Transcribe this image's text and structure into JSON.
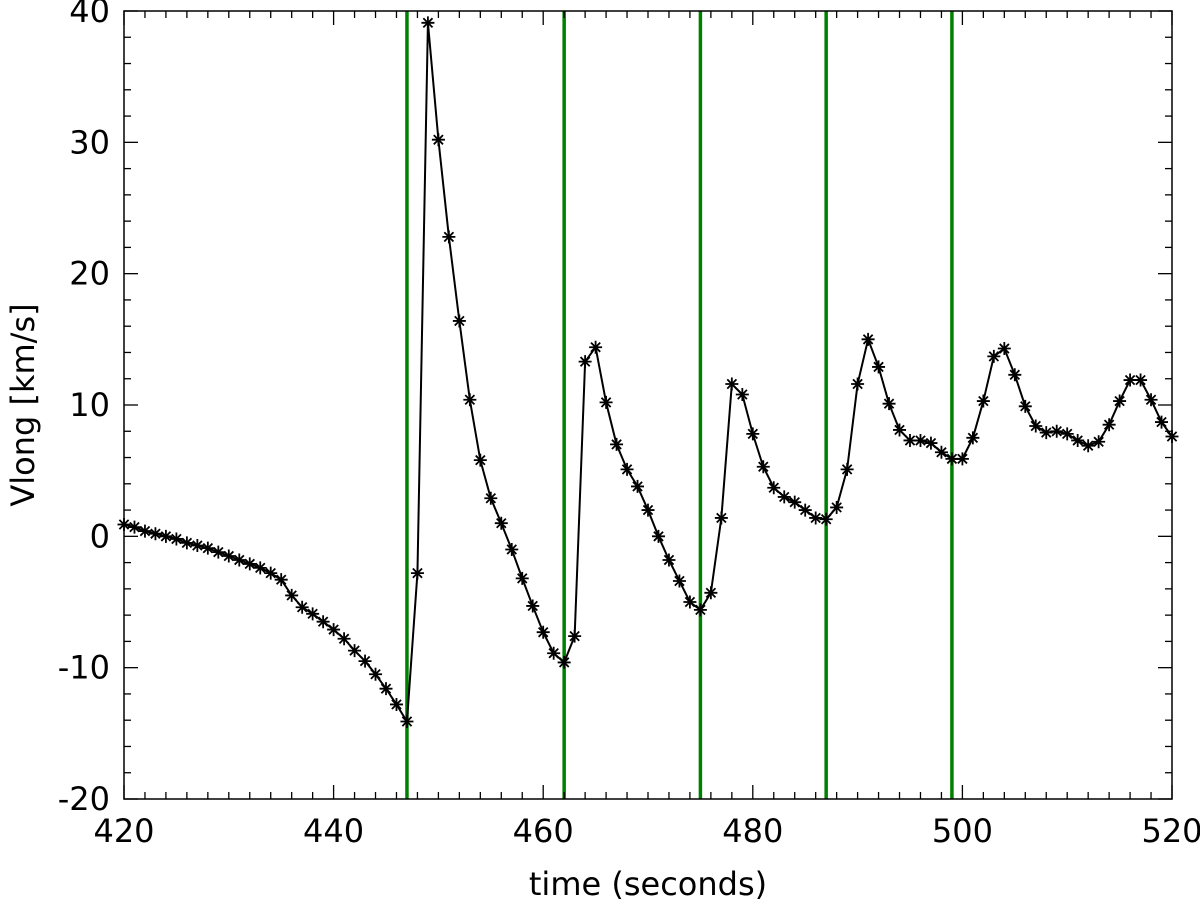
{
  "chart_data": {
    "type": "line",
    "title": "",
    "xlabel": "time (seconds)",
    "ylabel": "Vlong [km/s]",
    "xlim": [
      420,
      520
    ],
    "ylim": [
      -20,
      40
    ],
    "xticks": [
      "420",
      "440",
      "460",
      "480",
      "500",
      "520"
    ],
    "yticks": [
      "-20",
      "-10",
      "0",
      "10",
      "20",
      "30",
      "40"
    ],
    "grid": false,
    "legend": "none",
    "series": [
      {
        "color": "#000000",
        "marker": "asterisk",
        "x": [
          420,
          421,
          422,
          423,
          424,
          425,
          426,
          427,
          428,
          429,
          430,
          431,
          432,
          433,
          434,
          435,
          436,
          437,
          438,
          439,
          440,
          441,
          442,
          443,
          444,
          445,
          446,
          447,
          448,
          449,
          450,
          451,
          452,
          453,
          454,
          455,
          456,
          457,
          458,
          459,
          460,
          461,
          462,
          463,
          464,
          465,
          466,
          467,
          468,
          469,
          470,
          471,
          472,
          473,
          474,
          475,
          476,
          477,
          478,
          479,
          480,
          481,
          482,
          483,
          484,
          485,
          486,
          487,
          488,
          489,
          490,
          491,
          492,
          493,
          494,
          495,
          496,
          497,
          498,
          499,
          500,
          501,
          502,
          503,
          504,
          505,
          506,
          507,
          508,
          509,
          510,
          511,
          512,
          513,
          514,
          515,
          516,
          517,
          518,
          519,
          520
        ],
        "y": [
          0.9,
          0.7,
          0.4,
          0.2,
          0.0,
          -0.2,
          -0.5,
          -0.7,
          -0.9,
          -1.2,
          -1.5,
          -1.8,
          -2.1,
          -2.4,
          -2.8,
          -3.3,
          -4.5,
          -5.4,
          -5.9,
          -6.5,
          -7.1,
          -7.8,
          -8.7,
          -9.5,
          -10.5,
          -11.6,
          -12.8,
          -14.1,
          -2.8,
          39.1,
          30.2,
          22.8,
          16.4,
          10.4,
          5.8,
          2.9,
          1.0,
          -1.0,
          -3.2,
          -5.3,
          -7.3,
          -8.9,
          -9.6,
          -7.6,
          13.3,
          14.4,
          10.2,
          7.0,
          5.1,
          3.8,
          2.0,
          0.0,
          -1.8,
          -3.4,
          -5.0,
          -5.6,
          -4.3,
          1.4,
          11.6,
          10.8,
          7.8,
          5.3,
          3.7,
          3.0,
          2.6,
          2.0,
          1.4,
          1.3,
          2.2,
          5.1,
          11.6,
          15.0,
          12.9,
          10.1,
          8.1,
          7.3,
          7.3,
          7.1,
          6.4,
          5.9,
          5.9,
          7.5,
          10.3,
          13.7,
          14.3,
          12.3,
          9.9,
          8.4,
          7.9,
          8.0,
          7.8,
          7.3,
          6.9,
          7.2,
          8.5,
          10.3,
          11.9,
          11.9,
          10.4,
          8.7,
          7.6
        ]
      }
    ],
    "vertical_lines": {
      "color": "#008000",
      "x": [
        447,
        462,
        475,
        487,
        499
      ]
    }
  }
}
